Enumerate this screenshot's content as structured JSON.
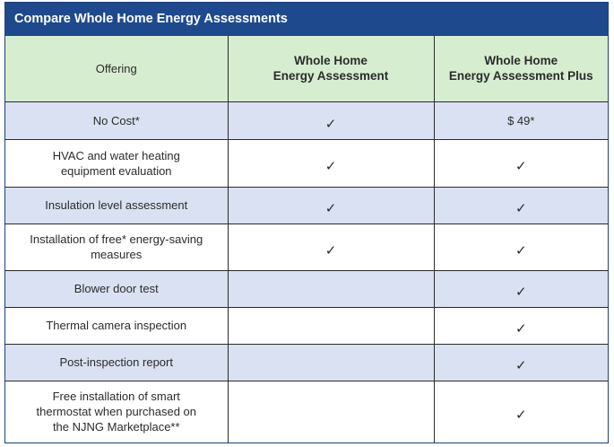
{
  "title": "Compare Whole Home Energy Assessments",
  "header": {
    "offering": "Offering",
    "plan1": "Whole Home\nEnergy Assessment",
    "plan2": "Whole Home\nEnergy Assessment Plus"
  },
  "check_glyph": "✓",
  "rows": [
    {
      "label": "No Cost*",
      "plan1": "check",
      "plan2_text": "$ 49*",
      "shade": true,
      "height": 42
    },
    {
      "label": "HVAC and water heating\nequipment evaluation",
      "plan1": "check",
      "plan2": "check",
      "shade": false,
      "height": 53
    },
    {
      "label": "Insulation level assessment",
      "plan1": "check",
      "plan2": "check",
      "shade": true,
      "height": 41
    },
    {
      "label": "Installation of free* energy-saving\nmeasures",
      "plan1": "check",
      "plan2": "check",
      "shade": false,
      "height": 52
    },
    {
      "label": "Blower door test",
      "plan2": "check",
      "shade": true,
      "height": 41
    },
    {
      "label": "Thermal camera inspection",
      "plan2": "check",
      "shade": false,
      "height": 41
    },
    {
      "label": "Post-inspection report",
      "plan2": "check",
      "shade": true,
      "height": 41
    },
    {
      "label": "Free installation of smart\nthermostat when purchased on\nthe NJNG Marketplace**",
      "plan2": "check",
      "shade": false,
      "height": 69
    }
  ]
}
